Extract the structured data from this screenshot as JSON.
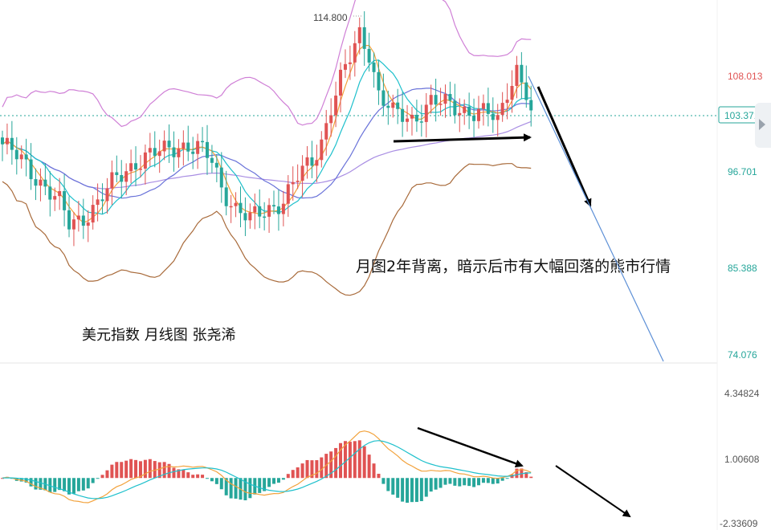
{
  "chart_data": {
    "type": "candlestick",
    "instrument_caption": "美元指数 月线图 张尧浠",
    "annotation": "月图2年背离，暗示后市有大幅回落的熊市行情",
    "high_label": "114.800",
    "price_axis": {
      "ticks": [
        108.013,
        96.701,
        85.388,
        74.076
      ],
      "tick_colors": [
        "#e05353",
        "#26a69a",
        "#26a69a",
        "#26a69a"
      ],
      "current_price": 103.371,
      "current_color": "#26a69a",
      "range": [
        72,
        118
      ]
    },
    "macd_axis": {
      "ticks": [
        4.34824,
        1.00608,
        -2.33609
      ],
      "range": [
        -2.5,
        4.8
      ]
    },
    "colors": {
      "up": "#e05353",
      "down": "#26a69a",
      "bb": "#cf7fd6",
      "ma_long": "#a98ee3",
      "ma_mid": "#6a73d9",
      "ma_fast": "#f2a23c",
      "ma_teal": "#1ec0cc",
      "ma_brown": "#a86a3a",
      "arrow": "#000000",
      "projection": "#5c8fd6"
    }
  }
}
